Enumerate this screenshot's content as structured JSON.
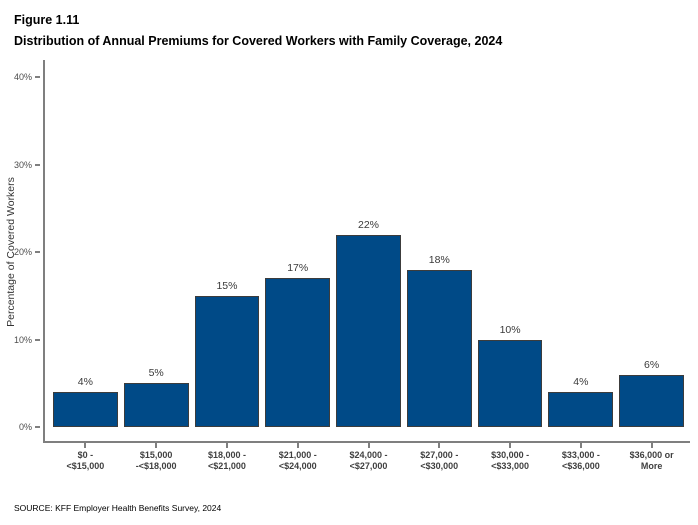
{
  "figure": {
    "number": "Figure 1.11",
    "title": "Distribution of Annual Premiums for Covered Workers with Family Coverage, 2024",
    "source": "SOURCE: KFF Employer Health Benefits Survey, 2024"
  },
  "chart_data": {
    "type": "bar",
    "title": "Distribution of Annual Premiums for Covered Workers with Family Coverage, 2024",
    "categories": [
      "$0 -\n<$15,000",
      "$15,000\n-<$18,000",
      "$18,000 -\n<$21,000",
      "$21,000 -\n<$24,000",
      "$24,000 -\n<$27,000",
      "$27,000 -\n<$30,000",
      "$30,000 -\n<$33,000",
      "$33,000 -\n<$36,000",
      "$36,000 or\nMore"
    ],
    "values": [
      4,
      5,
      15,
      17,
      22,
      18,
      10,
      4,
      6
    ],
    "value_labels": [
      "4%",
      "5%",
      "15%",
      "17%",
      "22%",
      "18%",
      "10%",
      "4%",
      "6%"
    ],
    "xlabel": "",
    "ylabel": "Percentage of Covered Workers",
    "ylim": [
      0,
      40
    ],
    "yticks": [
      0,
      10,
      20,
      30,
      40
    ],
    "ytick_labels": [
      "0%",
      "10%",
      "20%",
      "30%",
      "40%"
    ],
    "grid": false,
    "legend": false,
    "bar_color": "#004a87",
    "bar_border_color": "#3c3c3c",
    "axis_color": "#7f7f7f",
    "label_color": "#404040"
  }
}
